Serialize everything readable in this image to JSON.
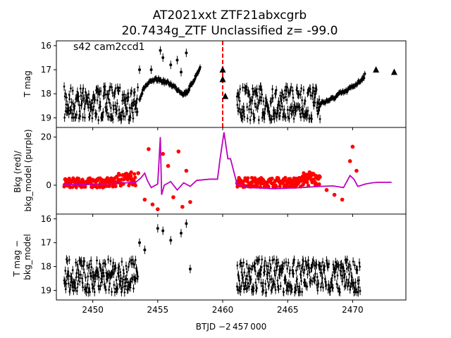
{
  "title_line1": "AT2021xxt  ZTF21abxcgrb",
  "title_line2": "20.7434g_ZTF Unclassified z= -99.0",
  "annotation": "s42 cam2ccd1",
  "xlabel": "BTJD −2 457 000",
  "colors": {
    "black": "#000000",
    "red": "#ff0000",
    "purple": "#bf00bf",
    "marker_line": "#ff0000"
  },
  "chart_data": [
    {
      "type": "scatter",
      "panel": "top",
      "ylabel": "T mag",
      "yaxis_inverted": true,
      "xlim": [
        2447.2,
        2474.1
      ],
      "ylim": [
        19.4,
        15.8
      ],
      "yticks": [
        "16",
        "17",
        "18",
        "19"
      ],
      "vertical_marker_x": 2460.0,
      "baseline_ranges": [
        [
          2447.8,
          2453.5,
          18.4
        ],
        [
          2461.1,
          2467.5,
          18.4
        ]
      ],
      "segments": [
        {
          "x": [
            2453.6,
            2454.0,
            2454.5,
            2455.0,
            2455.5,
            2456.0,
            2456.5,
            2457.0,
            2457.3,
            2457.6,
            2458.0,
            2458.3
          ],
          "y": [
            18.2,
            17.7,
            17.5,
            17.4,
            17.5,
            17.6,
            17.8,
            18.0,
            17.9,
            17.6,
            17.2,
            16.9
          ]
        },
        {
          "x": [
            2467.5,
            2468.0,
            2468.5,
            2469.0,
            2469.5,
            2470.0,
            2470.5,
            2471.0
          ],
          "y": [
            18.4,
            18.3,
            18.2,
            18.0,
            17.9,
            17.7,
            17.5,
            17.2
          ]
        }
      ],
      "outliers": [
        [
          2453.6,
          17.0
        ],
        [
          2454.5,
          17.0
        ],
        [
          2455.2,
          16.2
        ],
        [
          2455.4,
          16.5
        ],
        [
          2456.0,
          16.8
        ],
        [
          2456.5,
          16.6
        ],
        [
          2457.2,
          16.3
        ],
        [
          2456.8,
          17.1
        ]
      ],
      "triangles": [
        [
          2460.0,
          17.0
        ],
        [
          2460.0,
          17.4
        ],
        [
          2460.2,
          18.1
        ],
        [
          2471.8,
          17.0
        ],
        [
          2473.2,
          17.1
        ]
      ]
    },
    {
      "type": "line",
      "panel": "middle",
      "ylabel": "Bkg (red)/\nbkg_model (purple)",
      "xlim": [
        2447.2,
        2474.1
      ],
      "ylim": [
        -12,
        24
      ],
      "yticks": [
        "0",
        "20"
      ],
      "series": [
        {
          "x": [
            2447.8,
            2450.0,
            2452.0,
            2453.3,
            2453.7,
            2454.0,
            2454.2,
            2454.5,
            2455.0,
            2455.2,
            2455.3,
            2455.5,
            2456.0,
            2456.5,
            2457.0,
            2457.5,
            2458.0,
            2459.0,
            2459.6,
            2459.8,
            2460.1,
            2460.4,
            2460.6,
            2461.1,
            2462.0,
            2464.0,
            2466.0,
            2467.5,
            2468.5,
            2469.3,
            2469.8,
            2470.1,
            2470.4,
            2471.0,
            2471.5,
            2472.0,
            2473.0
          ],
          "y": [
            0.2,
            0.4,
            0.8,
            1.2,
            3.0,
            5.0,
            2.0,
            -1.0,
            0.5,
            20.0,
            -4.0,
            0.0,
            1.5,
            -2.0,
            1.0,
            -0.5,
            2.0,
            2.5,
            2.5,
            11.0,
            22.0,
            11.0,
            11.0,
            0.5,
            -1.0,
            -1.5,
            -1.0,
            -0.5,
            -0.3,
            -1.0,
            4.0,
            2.5,
            -0.5,
            0.5,
            1.0,
            1.2,
            1.2
          ]
        }
      ],
      "red_ranges": [
        [
          2447.8,
          2453.3,
          1.0
        ],
        [
          2461.1,
          2467.5,
          1.2
        ]
      ],
      "red_scatter": [
        [
          2453.5,
          5.0
        ],
        [
          2454.0,
          -6.0
        ],
        [
          2454.3,
          15.0
        ],
        [
          2454.6,
          -8.0
        ],
        [
          2455.0,
          -10.0
        ],
        [
          2455.4,
          13.0
        ],
        [
          2455.8,
          8.0
        ],
        [
          2456.2,
          -5.0
        ],
        [
          2456.6,
          14.0
        ],
        [
          2456.9,
          -9.0
        ],
        [
          2457.2,
          6.0
        ],
        [
          2457.5,
          -7.0
        ],
        [
          2468.0,
          -2.0
        ],
        [
          2468.6,
          -4.0
        ],
        [
          2469.2,
          -6.0
        ],
        [
          2469.8,
          10.0
        ],
        [
          2470.0,
          16.0
        ],
        [
          2470.3,
          6.0
        ]
      ]
    },
    {
      "type": "scatter",
      "panel": "bottom",
      "ylabel": "T mag −\nbkg_model",
      "yaxis_inverted": true,
      "xlim": [
        2447.2,
        2474.1
      ],
      "ylim": [
        19.4,
        15.8
      ],
      "yticks": [
        "16",
        "17",
        "18",
        "19"
      ],
      "xticks": [
        "2450",
        "2455",
        "2460",
        "2465",
        "2470"
      ],
      "xtick_values": [
        2450,
        2455,
        2460,
        2465,
        2470
      ],
      "baseline_ranges": [
        [
          2447.8,
          2453.5,
          18.4
        ],
        [
          2461.1,
          2470.6,
          18.4
        ]
      ],
      "outliers": [
        [
          2453.6,
          17.0
        ],
        [
          2454.0,
          17.3
        ],
        [
          2455.0,
          16.4
        ],
        [
          2455.4,
          16.5
        ],
        [
          2456.0,
          16.9
        ],
        [
          2456.8,
          16.6
        ],
        [
          2457.2,
          16.2
        ],
        [
          2457.5,
          18.1
        ]
      ]
    }
  ]
}
